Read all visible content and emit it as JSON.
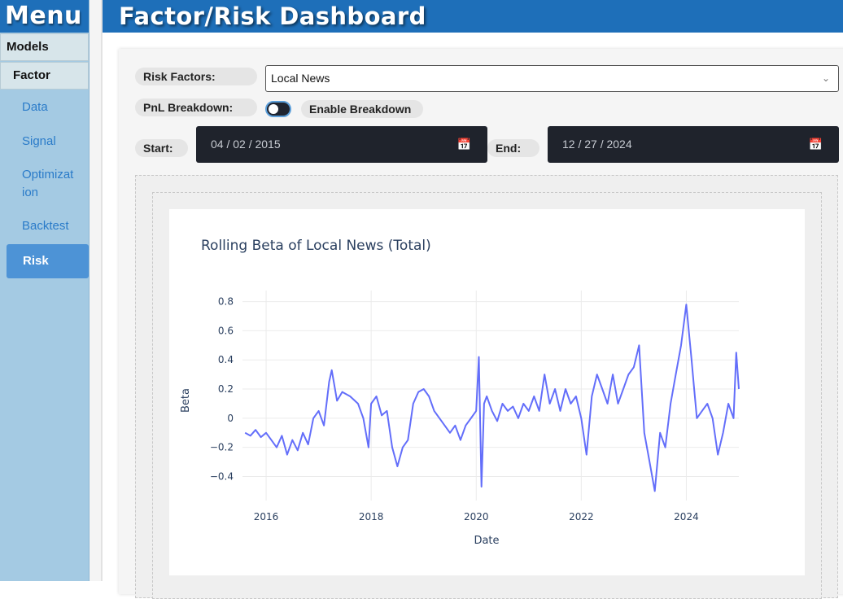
{
  "sidebar": {
    "title": "Menu",
    "models": "Models",
    "factor": "Factor",
    "items": [
      "Data",
      "Signal",
      "Optimizat\nion",
      "Backtest"
    ],
    "active": "Risk"
  },
  "header": {
    "title": "Factor/Risk Dashboard"
  },
  "controls": {
    "risk_factors_label": "Risk Factors:",
    "risk_factor_value": "Local News",
    "pnl_label": "PnL Breakdown:",
    "enable_breakdown": "Enable Breakdown",
    "start_label": "Start:",
    "start_date": "04 / 02 / 2015",
    "end_label": "End:",
    "end_date": "12 / 27 / 2024"
  },
  "colors": {
    "accent": "#1e6fb9",
    "line": "#636efa"
  },
  "chart_data": {
    "type": "line",
    "title": "Rolling Beta of Local News (Total)",
    "xlabel": "Date",
    "ylabel": "Beta",
    "x_ticks": [
      "2016",
      "2018",
      "2020",
      "2022",
      "2024"
    ],
    "y_ticks": [
      "0.8",
      "0.6",
      "0.4",
      "0.2",
      "0",
      "−0.2",
      "−0.4"
    ],
    "xlim": [
      2015.55,
      2025.0
    ],
    "ylim": [
      -0.52,
      0.82
    ],
    "grid": true,
    "series": [
      {
        "x": [
          2015.6,
          2015.7,
          2015.8,
          2015.9,
          2016.0,
          2016.1,
          2016.2,
          2016.3,
          2016.4,
          2016.5,
          2016.6,
          2016.7,
          2016.8,
          2016.9,
          2017.0,
          2017.1,
          2017.2,
          2017.25,
          2017.35,
          2017.45,
          2017.6,
          2017.75,
          2017.85,
          2017.95,
          2018.0,
          2018.1,
          2018.2,
          2018.3,
          2018.4,
          2018.5,
          2018.6,
          2018.7,
          2018.8,
          2018.9,
          2019.0,
          2019.1,
          2019.2,
          2019.3,
          2019.4,
          2019.5,
          2019.6,
          2019.7,
          2019.8,
          2019.9,
          2020.0,
          2020.05,
          2020.1,
          2020.15,
          2020.2,
          2020.3,
          2020.4,
          2020.5,
          2020.6,
          2020.7,
          2020.8,
          2020.9,
          2021.0,
          2021.1,
          2021.2,
          2021.3,
          2021.4,
          2021.5,
          2021.6,
          2021.7,
          2021.8,
          2021.9,
          2022.0,
          2022.1,
          2022.2,
          2022.3,
          2022.4,
          2022.5,
          2022.6,
          2022.7,
          2022.8,
          2022.9,
          2023.0,
          2023.1,
          2023.2,
          2023.3,
          2023.4,
          2023.5,
          2023.6,
          2023.7,
          2023.8,
          2023.9,
          2024.0,
          2024.1,
          2024.15,
          2024.2,
          2024.3,
          2024.4,
          2024.5,
          2024.6,
          2024.7,
          2024.8,
          2024.9,
          2024.95,
          2025.0
        ],
        "y": [
          -0.1,
          -0.12,
          -0.08,
          -0.13,
          -0.1,
          -0.15,
          -0.2,
          -0.12,
          -0.25,
          -0.15,
          -0.22,
          -0.1,
          -0.18,
          0.0,
          0.05,
          -0.05,
          0.25,
          0.33,
          0.12,
          0.18,
          0.15,
          0.1,
          0.0,
          -0.2,
          0.1,
          0.15,
          0.02,
          0.05,
          -0.2,
          -0.33,
          -0.2,
          -0.15,
          0.1,
          0.18,
          0.2,
          0.15,
          0.05,
          0.0,
          -0.05,
          -0.1,
          -0.05,
          -0.15,
          -0.05,
          0.0,
          0.05,
          0.42,
          -0.47,
          0.1,
          0.15,
          0.05,
          -0.02,
          0.1,
          0.05,
          0.08,
          0.0,
          0.1,
          0.05,
          0.15,
          0.05,
          0.3,
          0.1,
          0.2,
          0.05,
          0.2,
          0.1,
          0.15,
          0.0,
          -0.25,
          0.15,
          0.3,
          0.2,
          0.1,
          0.3,
          0.1,
          0.2,
          0.3,
          0.35,
          0.5,
          -0.1,
          -0.3,
          -0.5,
          -0.1,
          -0.2,
          0.1,
          0.3,
          0.5,
          0.78,
          0.4,
          0.2,
          0.0,
          0.05,
          0.1,
          0.0,
          -0.25,
          -0.1,
          0.1,
          0.0,
          0.45,
          0.2
        ]
      }
    ]
  }
}
